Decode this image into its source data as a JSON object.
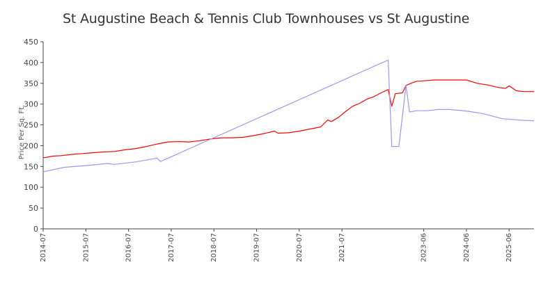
{
  "chart_data": {
    "type": "line",
    "title": "St Augustine Beach & Tennis Club Townhouses vs St Augustine",
    "xlabel": "",
    "ylabel": "Price Per Sq. Ft.",
    "ylim": [
      0,
      450
    ],
    "yticks": [
      0,
      50,
      100,
      150,
      200,
      250,
      300,
      350,
      400,
      450
    ],
    "xlim": [
      "2014-07",
      "2026-01"
    ],
    "xtick_labels": [
      "2014-07",
      "2015-07",
      "2016-07",
      "2017-07",
      "2018-07",
      "2019-07",
      "2020-07",
      "2021-07",
      "2023-06",
      "2024-06",
      "2025-06"
    ],
    "grid": false,
    "legend": "none",
    "series": [
      {
        "color": "#ff0000",
        "points": [
          [
            "2014-07",
            171
          ],
          [
            "2014-08",
            172
          ],
          [
            "2014-09",
            174
          ],
          [
            "2014-10",
            175
          ],
          [
            "2014-12",
            176
          ],
          [
            "2015-03",
            179
          ],
          [
            "2015-06",
            181
          ],
          [
            "2015-09",
            183
          ],
          [
            "2015-12",
            185
          ],
          [
            "2016-03",
            186
          ],
          [
            "2016-06",
            190
          ],
          [
            "2016-09",
            193
          ],
          [
            "2016-12",
            198
          ],
          [
            "2017-03",
            204
          ],
          [
            "2017-06",
            209
          ],
          [
            "2017-09",
            210
          ],
          [
            "2017-12",
            209
          ],
          [
            "2018-03",
            212
          ],
          [
            "2018-06",
            216
          ],
          [
            "2018-09",
            219
          ],
          [
            "2018-12",
            219
          ],
          [
            "2019-03",
            220
          ],
          [
            "2019-06",
            224
          ],
          [
            "2019-09",
            229
          ],
          [
            "2019-12",
            235
          ],
          [
            "2020-01",
            230
          ],
          [
            "2020-04",
            231
          ],
          [
            "2020-07",
            235
          ],
          [
            "2020-10",
            240
          ],
          [
            "2021-01",
            245
          ],
          [
            "2021-03",
            262
          ],
          [
            "2021-04",
            258
          ],
          [
            "2021-06",
            268
          ],
          [
            "2021-08",
            282
          ],
          [
            "2021-10",
            295
          ],
          [
            "2021-12",
            302
          ],
          [
            "2022-02",
            312
          ],
          [
            "2022-04",
            318
          ],
          [
            "2022-06",
            327
          ],
          [
            "2022-08",
            335
          ],
          [
            "2022-09",
            295
          ],
          [
            "2022-10",
            325
          ],
          [
            "2022-12",
            327
          ],
          [
            "2023-01",
            345
          ],
          [
            "2023-03",
            352
          ],
          [
            "2023-04",
            355
          ],
          [
            "2023-06",
            356
          ],
          [
            "2023-09",
            358
          ],
          [
            "2023-12",
            358
          ],
          [
            "2024-03",
            358
          ],
          [
            "2024-06",
            358
          ],
          [
            "2024-09",
            350
          ],
          [
            "2024-12",
            346
          ],
          [
            "2025-03",
            340
          ],
          [
            "2025-05",
            338
          ],
          [
            "2025-06",
            344
          ],
          [
            "2025-08",
            332
          ],
          [
            "2025-10",
            330
          ],
          [
            "2025-12",
            330
          ],
          [
            "2026-01",
            330
          ]
        ]
      },
      {
        "color": "#9999ee",
        "points": [
          [
            "2014-07",
            137
          ],
          [
            "2015-01",
            148
          ],
          [
            "2015-07",
            152
          ],
          [
            "2016-01",
            157
          ],
          [
            "2016-03",
            155
          ],
          [
            "2016-09",
            161
          ],
          [
            "2017-01",
            167
          ],
          [
            "2017-03",
            170
          ],
          [
            "2017-04",
            162
          ],
          [
            "2022-08",
            406
          ],
          [
            "2022-09",
            198
          ],
          [
            "2022-11",
            198
          ],
          [
            "2023-01",
            345
          ],
          [
            "2023-02",
            281
          ],
          [
            "2023-04",
            284
          ],
          [
            "2023-07",
            284
          ],
          [
            "2023-10",
            287
          ],
          [
            "2024-01",
            287
          ],
          [
            "2024-04",
            285
          ],
          [
            "2024-07",
            282
          ],
          [
            "2024-10",
            278
          ],
          [
            "2025-01",
            272
          ],
          [
            "2025-04",
            265
          ],
          [
            "2025-07",
            263
          ],
          [
            "2025-10",
            261
          ],
          [
            "2026-01",
            260
          ]
        ]
      }
    ]
  }
}
